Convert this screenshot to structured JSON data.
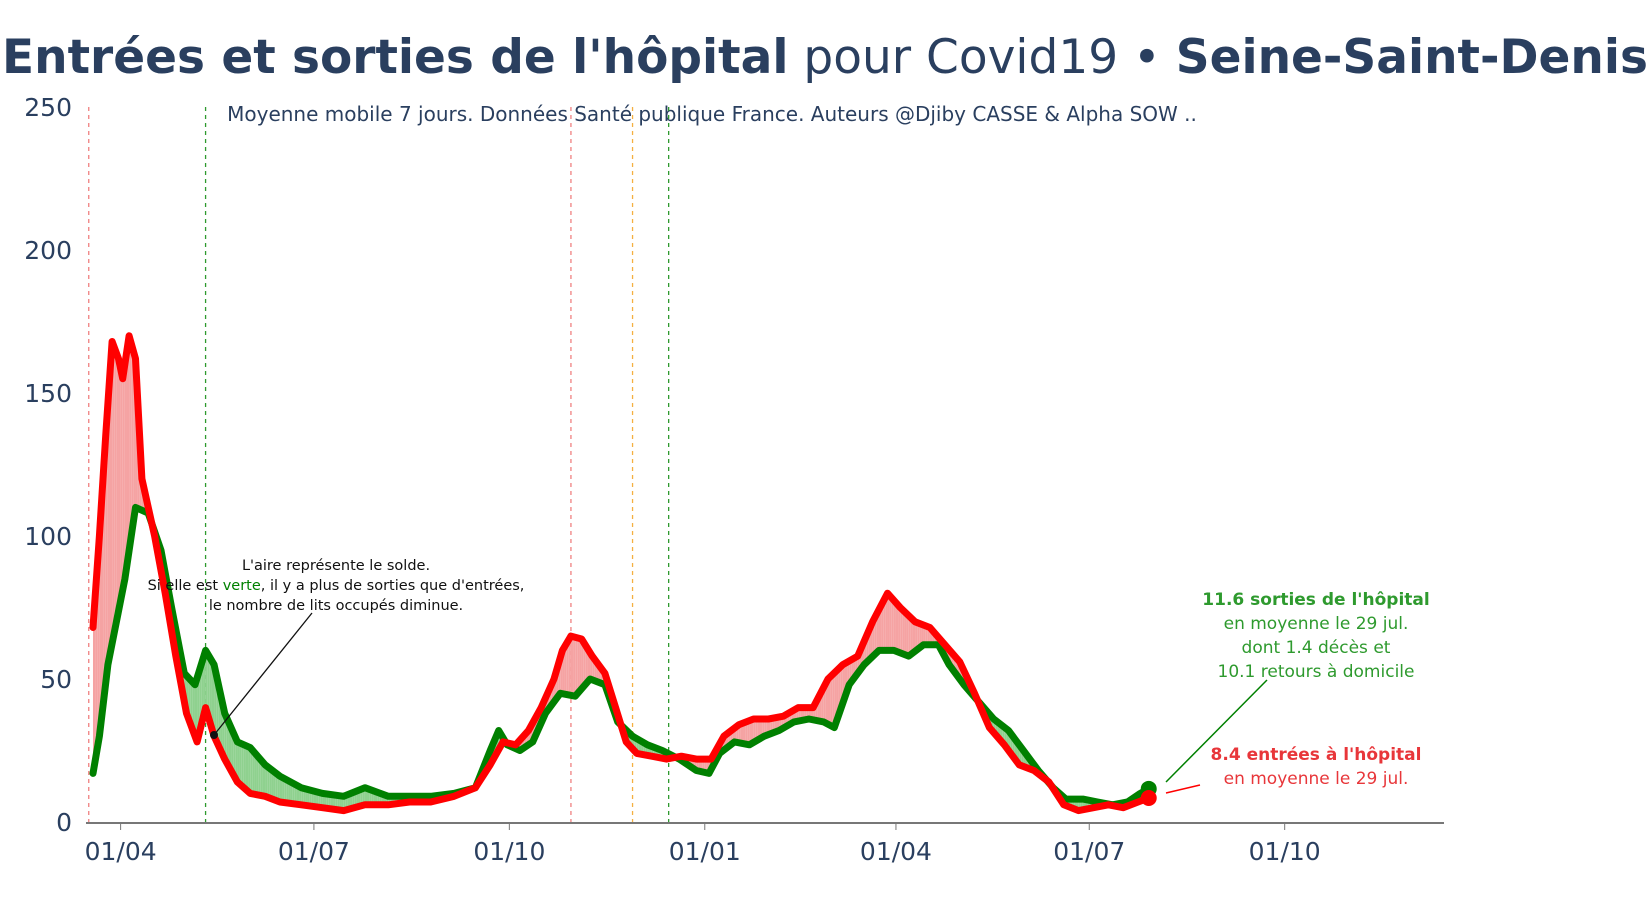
{
  "title": {
    "part1": "Entrées et sorties de l'hôpital",
    "part2": " pour Covid19 • ",
    "part3": "Seine-Saint-Denis"
  },
  "subtitle": "Moyenne mobile 7 jours. Données Santé publique France. Auteurs @Djiby CASSE & Alpha SOW ..",
  "colors": {
    "sorties": "#008000",
    "entrees": "#ff0000",
    "fill_green": "#8fd18f",
    "fill_red": "#f5a3a3",
    "text": "#2a3f5f"
  },
  "annotation_note": {
    "line1": "L'aire représente le solde.",
    "line2_a": "Si elle est ",
    "line2_b": "verte",
    "line2_c": ", il y a plus de sorties que d'entrées,",
    "line3": "le nombre de lits occupés diminue."
  },
  "label_sorties": {
    "line1": "11.6 sorties de l'hôpital",
    "line2": "en moyenne le 29 jul.",
    "line3": "dont 1.4 décès et",
    "line4": "10.1 retours à domicile"
  },
  "label_entrees": {
    "line1": "8.4 entrées à l'hôpital",
    "line2": "en moyenne le 29 jul."
  },
  "chart_data": {
    "type": "line",
    "title": "Entrées et sorties de l'hôpital pour Covid19 • Seine-Saint-Denis",
    "xlabel": "",
    "ylabel": "",
    "x_range": [
      "2020-03-11",
      "2021-12-15"
    ],
    "ylim": [
      0,
      250
    ],
    "y_ticks": [
      0,
      50,
      100,
      150,
      200,
      250
    ],
    "x_ticks": [
      {
        "date": "2020-04-01",
        "label": "01/04"
      },
      {
        "date": "2020-07-01",
        "label": "01/07"
      },
      {
        "date": "2020-10-01",
        "label": "01/10"
      },
      {
        "date": "2021-01-01",
        "label": "01/01"
      },
      {
        "date": "2021-04-01",
        "label": "01/04"
      },
      {
        "date": "2021-07-01",
        "label": "01/07"
      },
      {
        "date": "2021-10-01",
        "label": "01/10"
      }
    ],
    "vertical_lines": [
      {
        "date": "2020-03-17",
        "color": "red"
      },
      {
        "date": "2020-05-11",
        "color": "green"
      },
      {
        "date": "2020-10-30",
        "color": "red"
      },
      {
        "date": "2020-11-28",
        "color": "orange"
      },
      {
        "date": "2020-12-15",
        "color": "green"
      }
    ],
    "series": [
      {
        "name": "sorties",
        "color": "#008000",
        "points": [
          [
            "2020-03-19",
            17
          ],
          [
            "2020-03-22",
            30
          ],
          [
            "2020-03-26",
            55
          ],
          [
            "2020-03-30",
            70
          ],
          [
            "2020-04-03",
            85
          ],
          [
            "2020-04-08",
            110
          ],
          [
            "2020-04-14",
            108
          ],
          [
            "2020-04-20",
            95
          ],
          [
            "2020-04-25",
            75
          ],
          [
            "2020-05-01",
            52
          ],
          [
            "2020-05-06",
            48
          ],
          [
            "2020-05-11",
            60
          ],
          [
            "2020-05-15",
            55
          ],
          [
            "2020-05-20",
            38
          ],
          [
            "2020-05-26",
            28
          ],
          [
            "2020-06-01",
            26
          ],
          [
            "2020-06-08",
            20
          ],
          [
            "2020-06-15",
            16
          ],
          [
            "2020-06-25",
            12
          ],
          [
            "2020-07-05",
            10
          ],
          [
            "2020-07-15",
            9
          ],
          [
            "2020-07-25",
            12
          ],
          [
            "2020-08-05",
            9
          ],
          [
            "2020-08-15",
            9
          ],
          [
            "2020-08-25",
            9
          ],
          [
            "2020-09-05",
            10
          ],
          [
            "2020-09-15",
            12
          ],
          [
            "2020-09-22",
            25
          ],
          [
            "2020-09-26",
            32
          ],
          [
            "2020-09-30",
            27
          ],
          [
            "2020-10-06",
            25
          ],
          [
            "2020-10-12",
            28
          ],
          [
            "2020-10-18",
            38
          ],
          [
            "2020-10-25",
            45
          ],
          [
            "2020-11-01",
            44
          ],
          [
            "2020-11-08",
            50
          ],
          [
            "2020-11-15",
            48
          ],
          [
            "2020-11-21",
            35
          ],
          [
            "2020-11-28",
            30
          ],
          [
            "2020-12-05",
            27
          ],
          [
            "2020-12-12",
            25
          ],
          [
            "2020-12-20",
            22
          ],
          [
            "2020-12-28",
            18
          ],
          [
            "2021-01-03",
            17
          ],
          [
            "2021-01-08",
            24
          ],
          [
            "2021-01-15",
            28
          ],
          [
            "2021-01-22",
            27
          ],
          [
            "2021-01-29",
            30
          ],
          [
            "2021-02-05",
            32
          ],
          [
            "2021-02-12",
            35
          ],
          [
            "2021-02-19",
            36
          ],
          [
            "2021-02-26",
            35
          ],
          [
            "2021-03-03",
            33
          ],
          [
            "2021-03-10",
            48
          ],
          [
            "2021-03-17",
            55
          ],
          [
            "2021-03-24",
            60
          ],
          [
            "2021-03-31",
            60
          ],
          [
            "2021-04-07",
            58
          ],
          [
            "2021-04-14",
            62
          ],
          [
            "2021-04-21",
            62
          ],
          [
            "2021-04-26",
            55
          ],
          [
            "2021-05-03",
            48
          ],
          [
            "2021-05-10",
            42
          ],
          [
            "2021-05-17",
            36
          ],
          [
            "2021-05-24",
            32
          ],
          [
            "2021-05-31",
            25
          ],
          [
            "2021-06-07",
            18
          ],
          [
            "2021-06-14",
            12
          ],
          [
            "2021-06-20",
            8
          ],
          [
            "2021-06-28",
            8
          ],
          [
            "2021-07-05",
            7
          ],
          [
            "2021-07-12",
            6
          ],
          [
            "2021-07-19",
            7
          ],
          [
            "2021-07-25",
            10
          ],
          [
            "2021-07-29",
            11.6
          ]
        ]
      },
      {
        "name": "entrées",
        "color": "#ff0000",
        "points": [
          [
            "2020-03-19",
            68
          ],
          [
            "2020-03-22",
            100
          ],
          [
            "2020-03-25",
            135
          ],
          [
            "2020-03-28",
            168
          ],
          [
            "2020-03-31",
            162
          ],
          [
            "2020-04-02",
            155
          ],
          [
            "2020-04-05",
            170
          ],
          [
            "2020-04-08",
            162
          ],
          [
            "2020-04-11",
            120
          ],
          [
            "2020-04-17",
            100
          ],
          [
            "2020-04-22",
            80
          ],
          [
            "2020-04-27",
            58
          ],
          [
            "2020-05-02",
            38
          ],
          [
            "2020-05-07",
            28
          ],
          [
            "2020-05-11",
            40
          ],
          [
            "2020-05-15",
            30
          ],
          [
            "2020-05-20",
            22
          ],
          [
            "2020-05-26",
            14
          ],
          [
            "2020-06-01",
            10
          ],
          [
            "2020-06-08",
            9
          ],
          [
            "2020-06-15",
            7
          ],
          [
            "2020-06-25",
            6
          ],
          [
            "2020-07-05",
            5
          ],
          [
            "2020-07-15",
            4
          ],
          [
            "2020-07-25",
            6
          ],
          [
            "2020-08-05",
            6
          ],
          [
            "2020-08-15",
            7
          ],
          [
            "2020-08-25",
            7
          ],
          [
            "2020-09-05",
            9
          ],
          [
            "2020-09-15",
            12
          ],
          [
            "2020-09-22",
            20
          ],
          [
            "2020-09-28",
            28
          ],
          [
            "2020-10-04",
            27
          ],
          [
            "2020-10-10",
            32
          ],
          [
            "2020-10-16",
            40
          ],
          [
            "2020-10-22",
            50
          ],
          [
            "2020-10-26",
            60
          ],
          [
            "2020-10-30",
            65
          ],
          [
            "2020-11-04",
            64
          ],
          [
            "2020-11-09",
            58
          ],
          [
            "2020-11-15",
            52
          ],
          [
            "2020-11-20",
            40
          ],
          [
            "2020-11-25",
            28
          ],
          [
            "2020-11-30",
            24
          ],
          [
            "2020-12-07",
            23
          ],
          [
            "2020-12-14",
            22
          ],
          [
            "2020-12-21",
            23
          ],
          [
            "2020-12-28",
            22
          ],
          [
            "2021-01-04",
            22
          ],
          [
            "2021-01-10",
            30
          ],
          [
            "2021-01-17",
            34
          ],
          [
            "2021-01-24",
            36
          ],
          [
            "2021-01-31",
            36
          ],
          [
            "2021-02-07",
            37
          ],
          [
            "2021-02-14",
            40
          ],
          [
            "2021-02-21",
            40
          ],
          [
            "2021-02-28",
            50
          ],
          [
            "2021-03-07",
            55
          ],
          [
            "2021-03-14",
            58
          ],
          [
            "2021-03-21",
            70
          ],
          [
            "2021-03-28",
            80
          ],
          [
            "2021-04-03",
            75
          ],
          [
            "2021-04-10",
            70
          ],
          [
            "2021-04-17",
            68
          ],
          [
            "2021-04-24",
            62
          ],
          [
            "2021-05-01",
            56
          ],
          [
            "2021-05-08",
            45
          ],
          [
            "2021-05-15",
            33
          ],
          [
            "2021-05-22",
            27
          ],
          [
            "2021-05-29",
            20
          ],
          [
            "2021-06-05",
            18
          ],
          [
            "2021-06-12",
            14
          ],
          [
            "2021-06-19",
            6
          ],
          [
            "2021-06-26",
            4
          ],
          [
            "2021-07-03",
            5
          ],
          [
            "2021-07-10",
            6
          ],
          [
            "2021-07-17",
            5
          ],
          [
            "2021-07-24",
            7
          ],
          [
            "2021-07-29",
            8.4
          ]
        ]
      }
    ]
  }
}
